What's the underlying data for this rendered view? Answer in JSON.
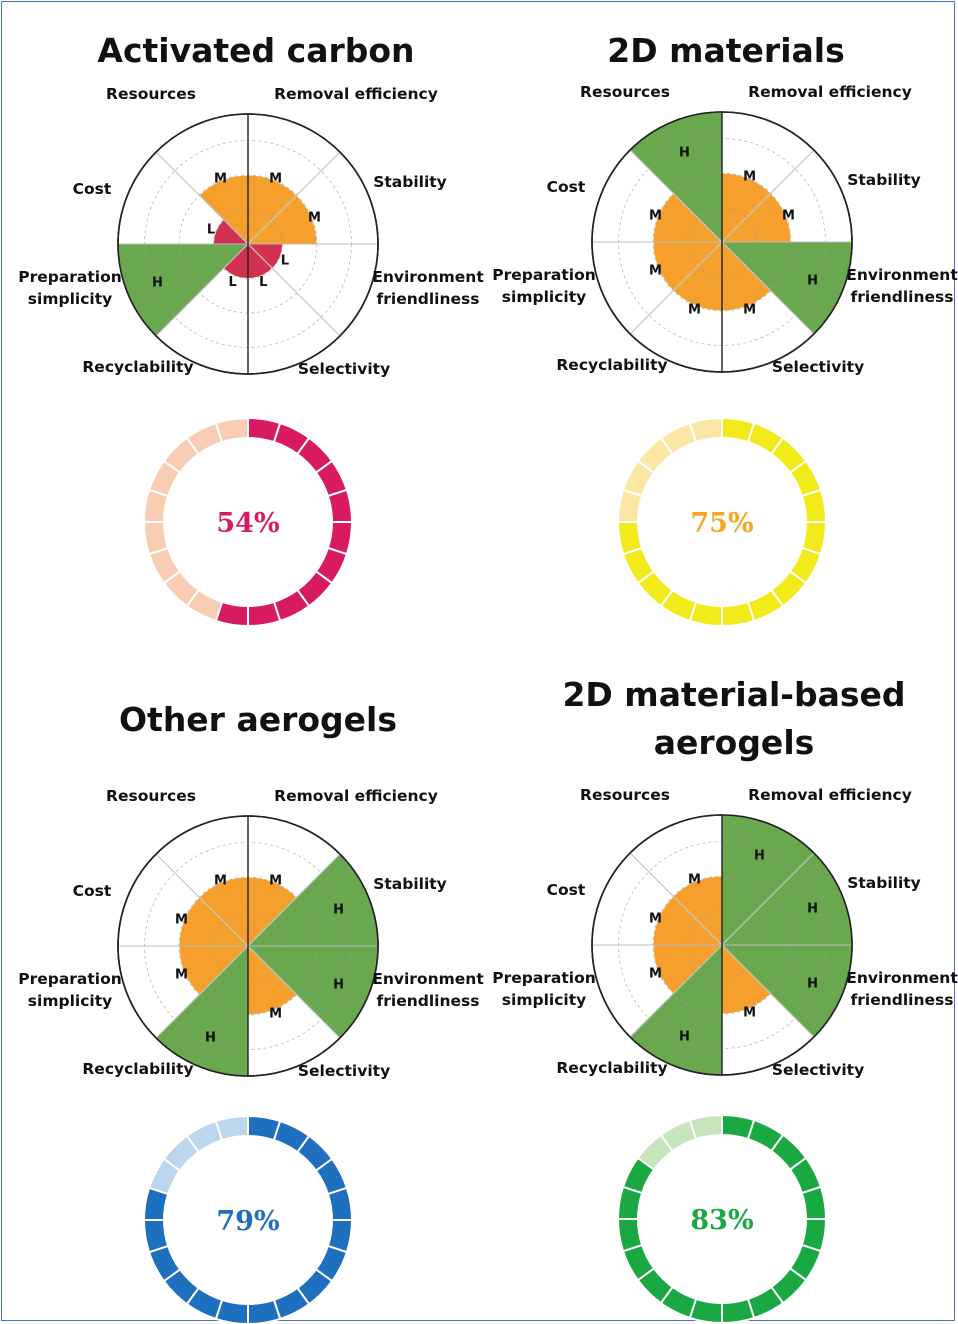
{
  "colors": {
    "H": "#6aa84f",
    "M": "#f5a02c",
    "L": "#d2304f",
    "level_text": "#111111",
    "frame": "#4a72c4"
  },
  "level_radius": {
    "L": 1,
    "M": 2,
    "H": 3
  },
  "chart_data": [
    {
      "type": "radar",
      "title": [
        "Activated carbon"
      ],
      "axes": [
        "Removal efficiency",
        "Stability",
        "Environment friendliness",
        "Selectivity",
        "Recyclability",
        "Preparation simplicity",
        "Cost",
        "Resources"
      ],
      "levels": [
        "M",
        "M",
        "L",
        "L",
        "L",
        "H",
        "L",
        "M"
      ],
      "score": {
        "value": 54,
        "label": "54%",
        "color": "#d81b60",
        "light": "#f8cdb3"
      }
    },
    {
      "type": "radar",
      "title": [
        "2D materials"
      ],
      "axes": [
        "Removal efficiency",
        "Stability",
        "Environment friendliness",
        "Selectivity",
        "Recyclability",
        "Preparation simplicity",
        "Cost",
        "Resources"
      ],
      "levels": [
        "M",
        "M",
        "H",
        "M",
        "M",
        "M",
        "M",
        "H"
      ],
      "score": {
        "value": 75,
        "label": "75%",
        "color": "#f2ea1a",
        "light": "#fbe7a3",
        "text_color": "#f5a623"
      }
    },
    {
      "type": "radar",
      "title": [
        "Other aerogels"
      ],
      "axes": [
        "Removal efficiency",
        "Stability",
        "Environment friendliness",
        "Selectivity",
        "Recyclability",
        "Preparation simplicity",
        "Cost",
        "Resources"
      ],
      "levels": [
        "M",
        "H",
        "H",
        "M",
        "H",
        "M",
        "M",
        "M"
      ],
      "score": {
        "value": 79,
        "label": "79%",
        "color": "#1f6fbf",
        "light": "#bcd6ee"
      }
    },
    {
      "type": "radar",
      "title": [
        "2D material-based",
        "aerogels"
      ],
      "axes": [
        "Removal efficiency",
        "Stability",
        "Environment friendliness",
        "Selectivity",
        "Recyclability",
        "Preparation simplicity",
        "Cost",
        "Resources"
      ],
      "levels": [
        "H",
        "H",
        "H",
        "M",
        "H",
        "M",
        "M",
        "M"
      ],
      "score": {
        "value": 83,
        "label": "83%",
        "color": "#1aa843",
        "light": "#c6e5bd"
      }
    }
  ]
}
